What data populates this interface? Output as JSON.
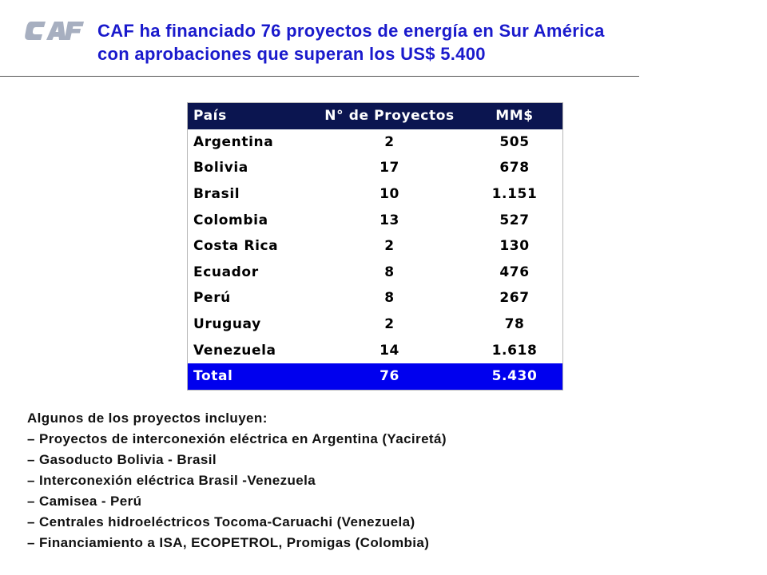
{
  "logo": {
    "text": "CAF",
    "color": "#a7afc0"
  },
  "title": {
    "line1": "CAF ha financiado 76 proyectos de energía en Sur América",
    "line2": "con aprobaciones que superan los US$ 5.400",
    "color": "#1a1acc"
  },
  "table": {
    "headers": [
      "País",
      "N° de Proyectos",
      "MM$"
    ],
    "rows": [
      {
        "country": "Argentina",
        "projects": "2",
        "amount": "505"
      },
      {
        "country": "Bolivia",
        "projects": "17",
        "amount": "678"
      },
      {
        "country": "Brasil",
        "projects": "10",
        "amount": "1.151"
      },
      {
        "country": "Colombia",
        "projects": "13",
        "amount": "527"
      },
      {
        "country": "Costa Rica",
        "projects": "2",
        "amount": "130"
      },
      {
        "country": "Ecuador",
        "projects": "8",
        "amount": "476"
      },
      {
        "country": "Perú",
        "projects": "8",
        "amount": "267"
      },
      {
        "country": "Uruguay",
        "projects": "2",
        "amount": "78"
      },
      {
        "country": "Venezuela",
        "projects": "14",
        "amount": "1.618"
      }
    ],
    "total": {
      "country": "Total",
      "projects": "76",
      "amount": "5.430"
    },
    "header_color": "#0b1550",
    "total_color": "#0000ee"
  },
  "notes": {
    "intro": "Algunos de los proyectos incluyen:",
    "items": [
      "– Proyectos de interconexión eléctrica en Argentina (Yaciretá)",
      "– Gasoducto Bolivia - Brasil",
      "– Interconexión eléctrica Brasil -Venezuela",
      "– Camisea - Perú",
      "– Centrales hidroeléctricos Tocoma-Caruachi (Venezuela)",
      "– Financiamiento a ISA, ECOPETROL, Promigas (Colombia)"
    ]
  }
}
